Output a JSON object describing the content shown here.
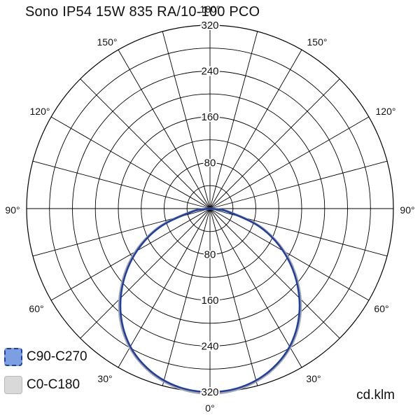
{
  "title": "Sono IP54 15W 835 RA/10-100 PCO",
  "unit_label": "cd.klm",
  "colors": {
    "grid": "#000000",
    "c90_line": "#1f3fa8",
    "c90_fill": "#7b9fe0",
    "c0_line": "#a8a8a8",
    "c0_fill": "#d9d9d9"
  },
  "chart_data": {
    "type": "polar",
    "title": "Sono IP54 15W 835 RA/10-100 PCO",
    "unit": "cd.klm",
    "r_max": 320,
    "radial_ticks": [
      80,
      160,
      240,
      320
    ],
    "radial_tick_labels": [
      "80",
      "160",
      "240",
      "320"
    ],
    "angle_labels": [
      "0°",
      "30°",
      "60°",
      "90°",
      "120°",
      "150°",
      "180°",
      "30°",
      "60°",
      "90°",
      "120°",
      "150°"
    ],
    "angle_label_values": [
      0,
      30,
      60,
      90,
      120,
      150,
      180,
      -30,
      -60,
      -90,
      -120,
      -150
    ],
    "angle_step_deg": 15,
    "legend": [
      {
        "name": "C90-C270",
        "line": "#1f3fa8",
        "fill": "#7b9fe0",
        "dashed": true
      },
      {
        "name": "C0-C180",
        "line": "#a8a8a8",
        "fill": "#d9d9d9",
        "dashed": false
      }
    ],
    "series": [
      {
        "name": "C0-C180",
        "angles": [
          0,
          10,
          20,
          30,
          40,
          50,
          60,
          70,
          80,
          85,
          90
        ],
        "values": [
          323,
          318,
          304,
          280,
          245,
          200,
          150,
          95,
          35,
          10,
          0
        ]
      },
      {
        "name": "C90-C270",
        "angles": [
          0,
          10,
          20,
          30,
          40,
          50,
          60,
          70,
          80,
          85,
          90
        ],
        "values": [
          320,
          316,
          302,
          278,
          242,
          197,
          147,
          92,
          32,
          8,
          0
        ]
      }
    ]
  }
}
